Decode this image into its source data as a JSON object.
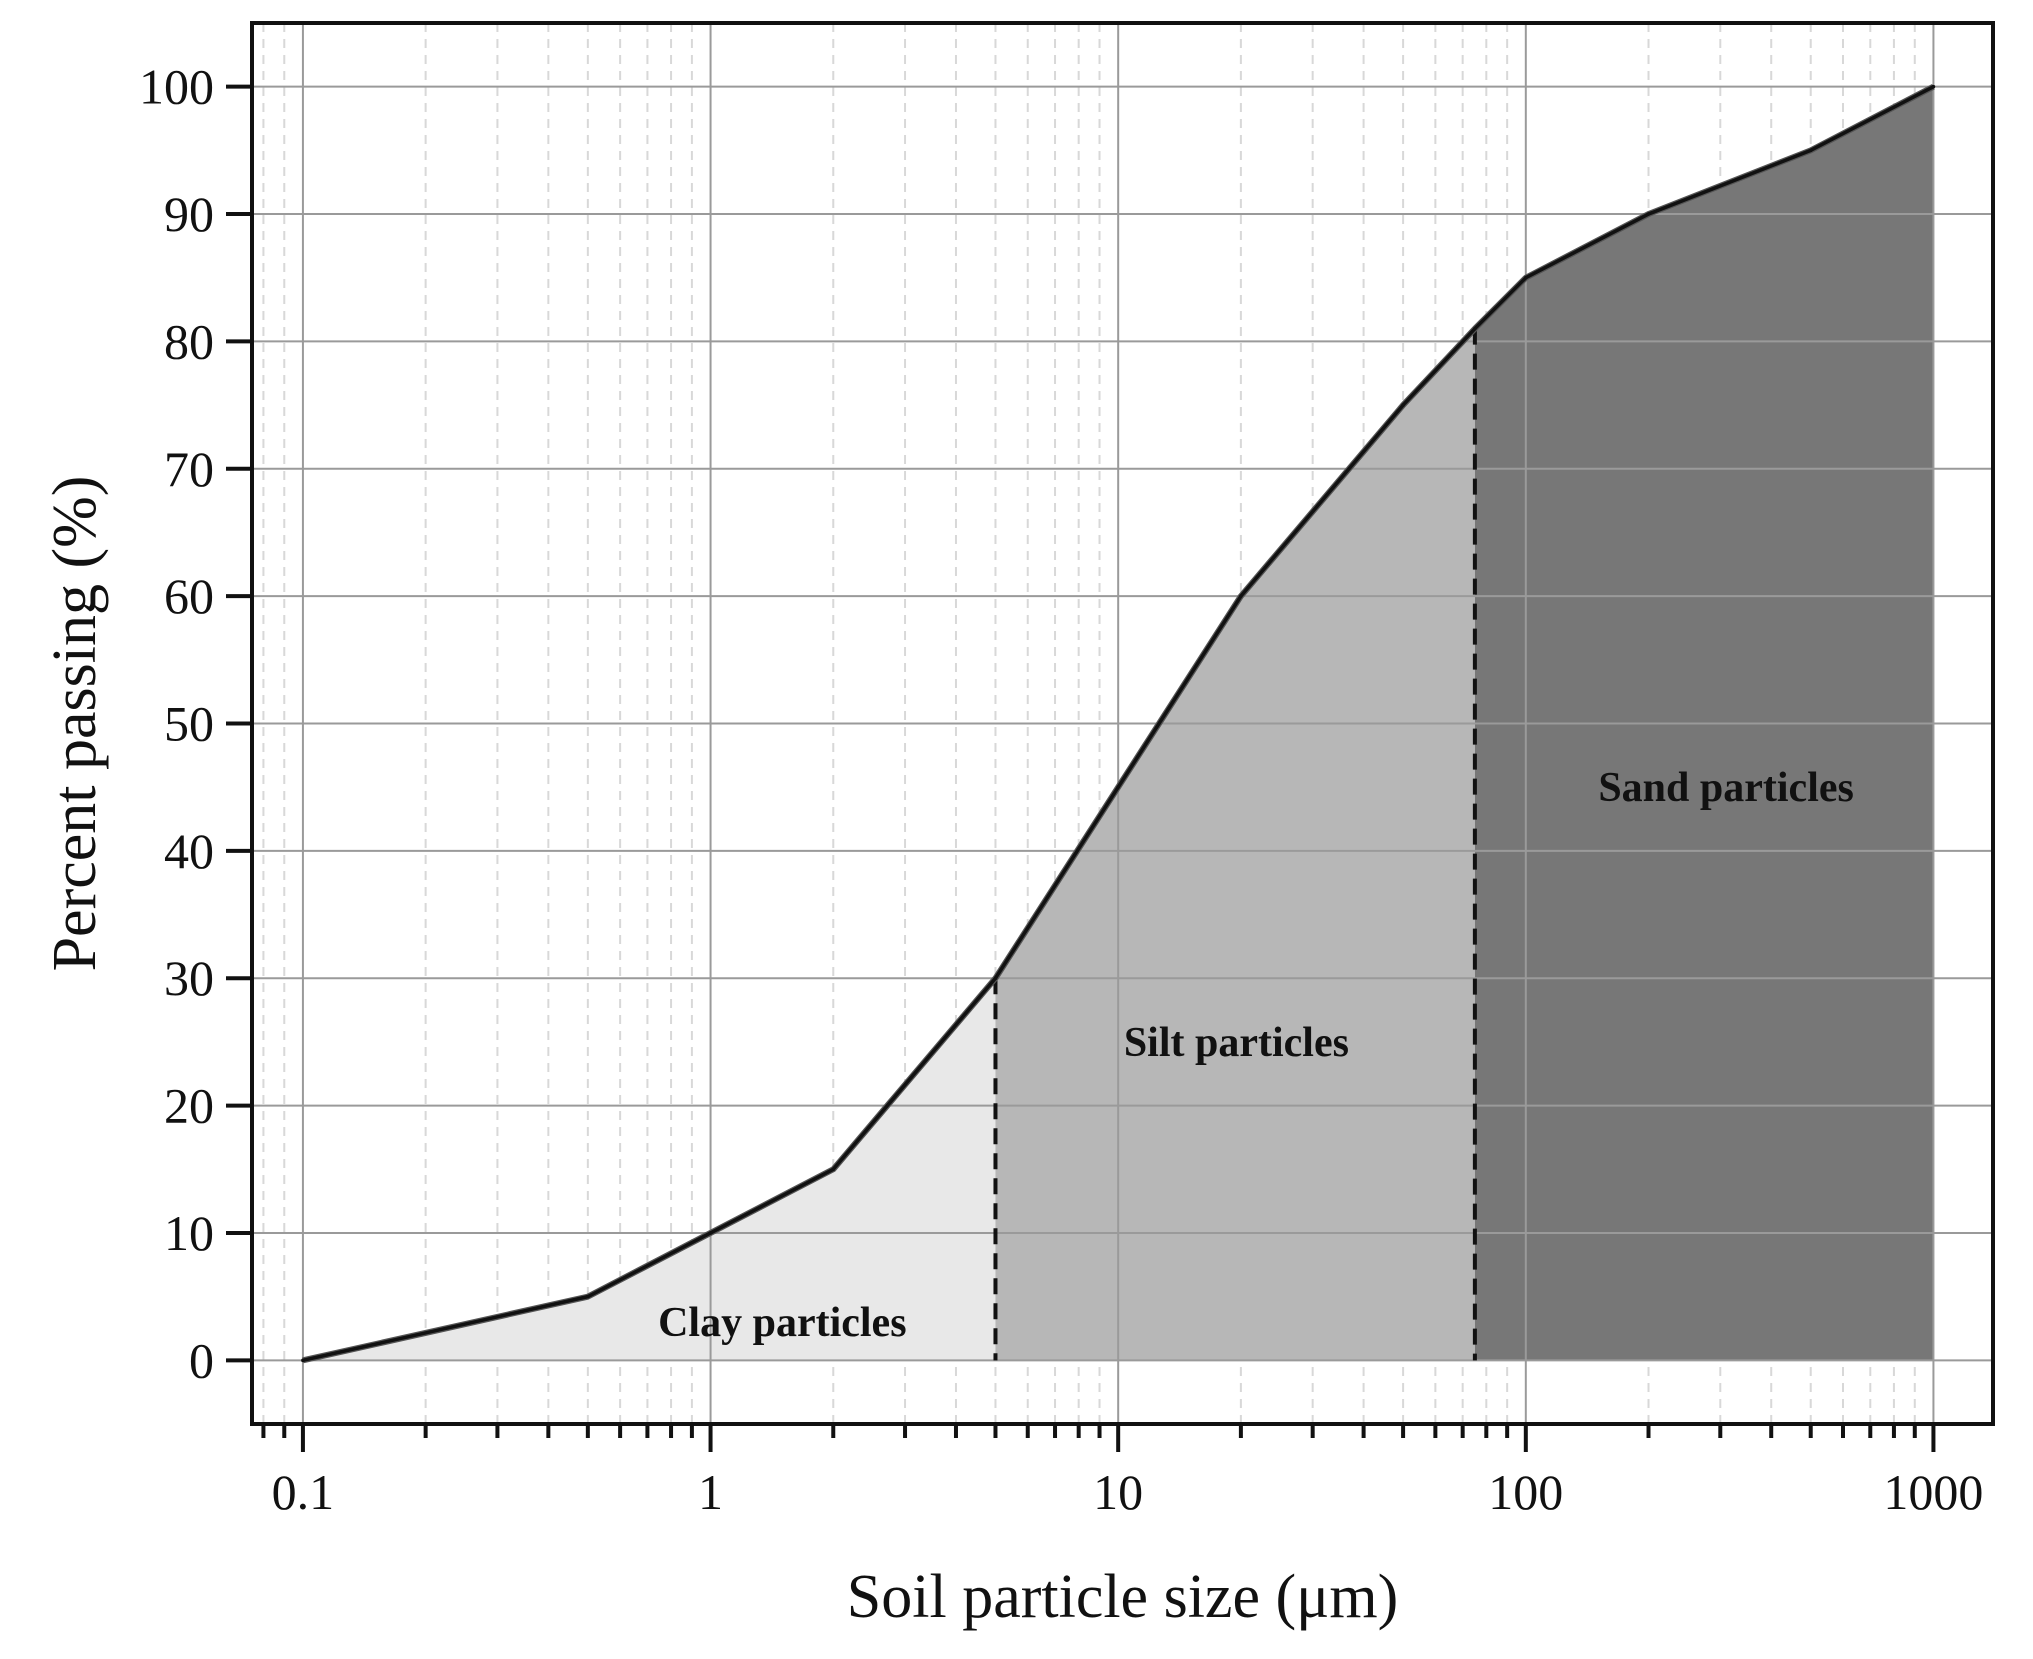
{
  "chart_data": {
    "type": "area",
    "title": "",
    "xlabel": "Soil particle size (μm)",
    "ylabel": "Percent passing (%)",
    "x_scale": "log",
    "xlim": [
      0.075,
      1400
    ],
    "ylim": [
      -5,
      105
    ],
    "x_ticks": [
      0.1,
      1,
      10,
      100,
      1000
    ],
    "x_tick_labels": [
      "0.1",
      "1",
      "10",
      "100",
      "1000"
    ],
    "y_ticks": [
      0,
      10,
      20,
      30,
      40,
      50,
      60,
      70,
      80,
      90,
      100
    ],
    "y_tick_labels": [
      "0",
      "10",
      "20",
      "30",
      "40",
      "50",
      "60",
      "70",
      "80",
      "90",
      "100"
    ],
    "grid": true,
    "series": [
      {
        "x": [
          0.1,
          0.5,
          1,
          2,
          5,
          10,
          20,
          50,
          75,
          100,
          200,
          500,
          1000
        ],
        "values": [
          0,
          5,
          10,
          15,
          30,
          45,
          60,
          75,
          81,
          85,
          90,
          95,
          100
        ]
      }
    ],
    "regions": [
      {
        "label": "Clay particles",
        "x_range": [
          0.1,
          5
        ],
        "color": "#e8e8e8",
        "label_position": [
          1.5,
          3
        ]
      },
      {
        "label": "Silt particles",
        "x_range": [
          5,
          75
        ],
        "color": "#b7b7b7",
        "label_position": [
          19.5,
          25
        ]
      },
      {
        "label": "Sand particles",
        "x_range": [
          75,
          1000
        ],
        "color": "#777777",
        "label_position": [
          310,
          45
        ]
      }
    ],
    "boundaries": [
      5,
      75
    ],
    "colors": {
      "line": "#111111",
      "grid": "#9a9a9a",
      "minor_grid": "#d8d8d8",
      "frame": "#111111"
    }
  }
}
